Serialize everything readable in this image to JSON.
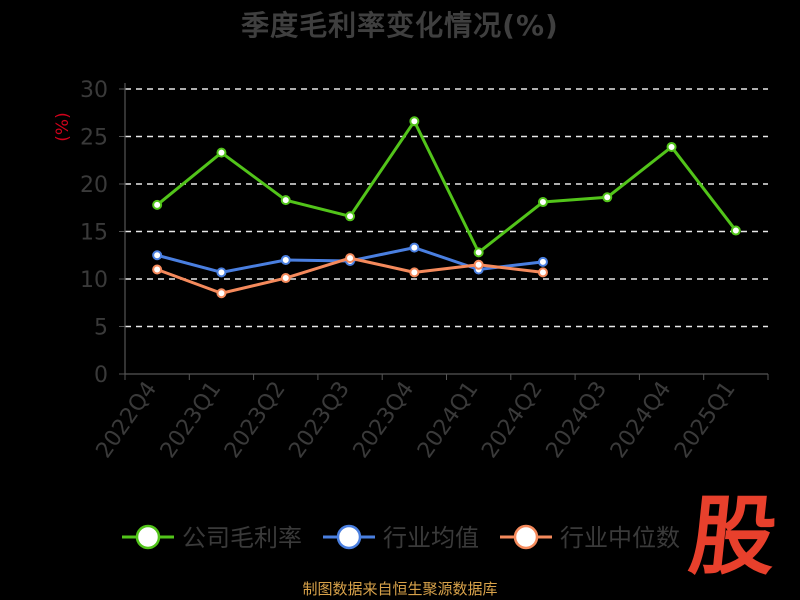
{
  "colors": {
    "company": "#52c41a",
    "industry_avg": "#4a7fe0",
    "industry_median": "#f58a5c",
    "grid": "#e8e8e8",
    "axis_text": "#3a3a3a",
    "unit_text": "#d0021b",
    "source_text": "#d8a24a",
    "logo": "#e8402c"
  },
  "source_note": "制图数据来自恒生聚源数据库",
  "logo_text": "股",
  "chart_data": {
    "type": "line",
    "title": "季度毛利率变化情况(%)",
    "ylabel": "(%)",
    "xlabel": "",
    "ylim": [
      0,
      30
    ],
    "yticks": [
      0,
      5,
      10,
      15,
      20,
      25,
      30
    ],
    "grid": true,
    "legend_position": "bottom",
    "categories": [
      "2022Q4",
      "2023Q1",
      "2023Q2",
      "2023Q3",
      "2023Q4",
      "2024Q1",
      "2024Q2",
      "2024Q3",
      "2024Q4",
      "2025Q1"
    ],
    "series": [
      {
        "name": "公司毛利率",
        "color_key": "company",
        "values": [
          17.8,
          23.3,
          18.3,
          16.6,
          26.6,
          12.8,
          18.1,
          18.6,
          23.9,
          15.1
        ]
      },
      {
        "name": "行业均值",
        "color_key": "industry_avg",
        "values": [
          12.5,
          10.7,
          12.0,
          11.9,
          13.3,
          11.0,
          11.8,
          null,
          null,
          null
        ]
      },
      {
        "name": "行业中位数",
        "color_key": "industry_median",
        "values": [
          11.0,
          8.5,
          10.1,
          12.2,
          10.7,
          11.5,
          10.7,
          null,
          null,
          null
        ]
      }
    ]
  }
}
